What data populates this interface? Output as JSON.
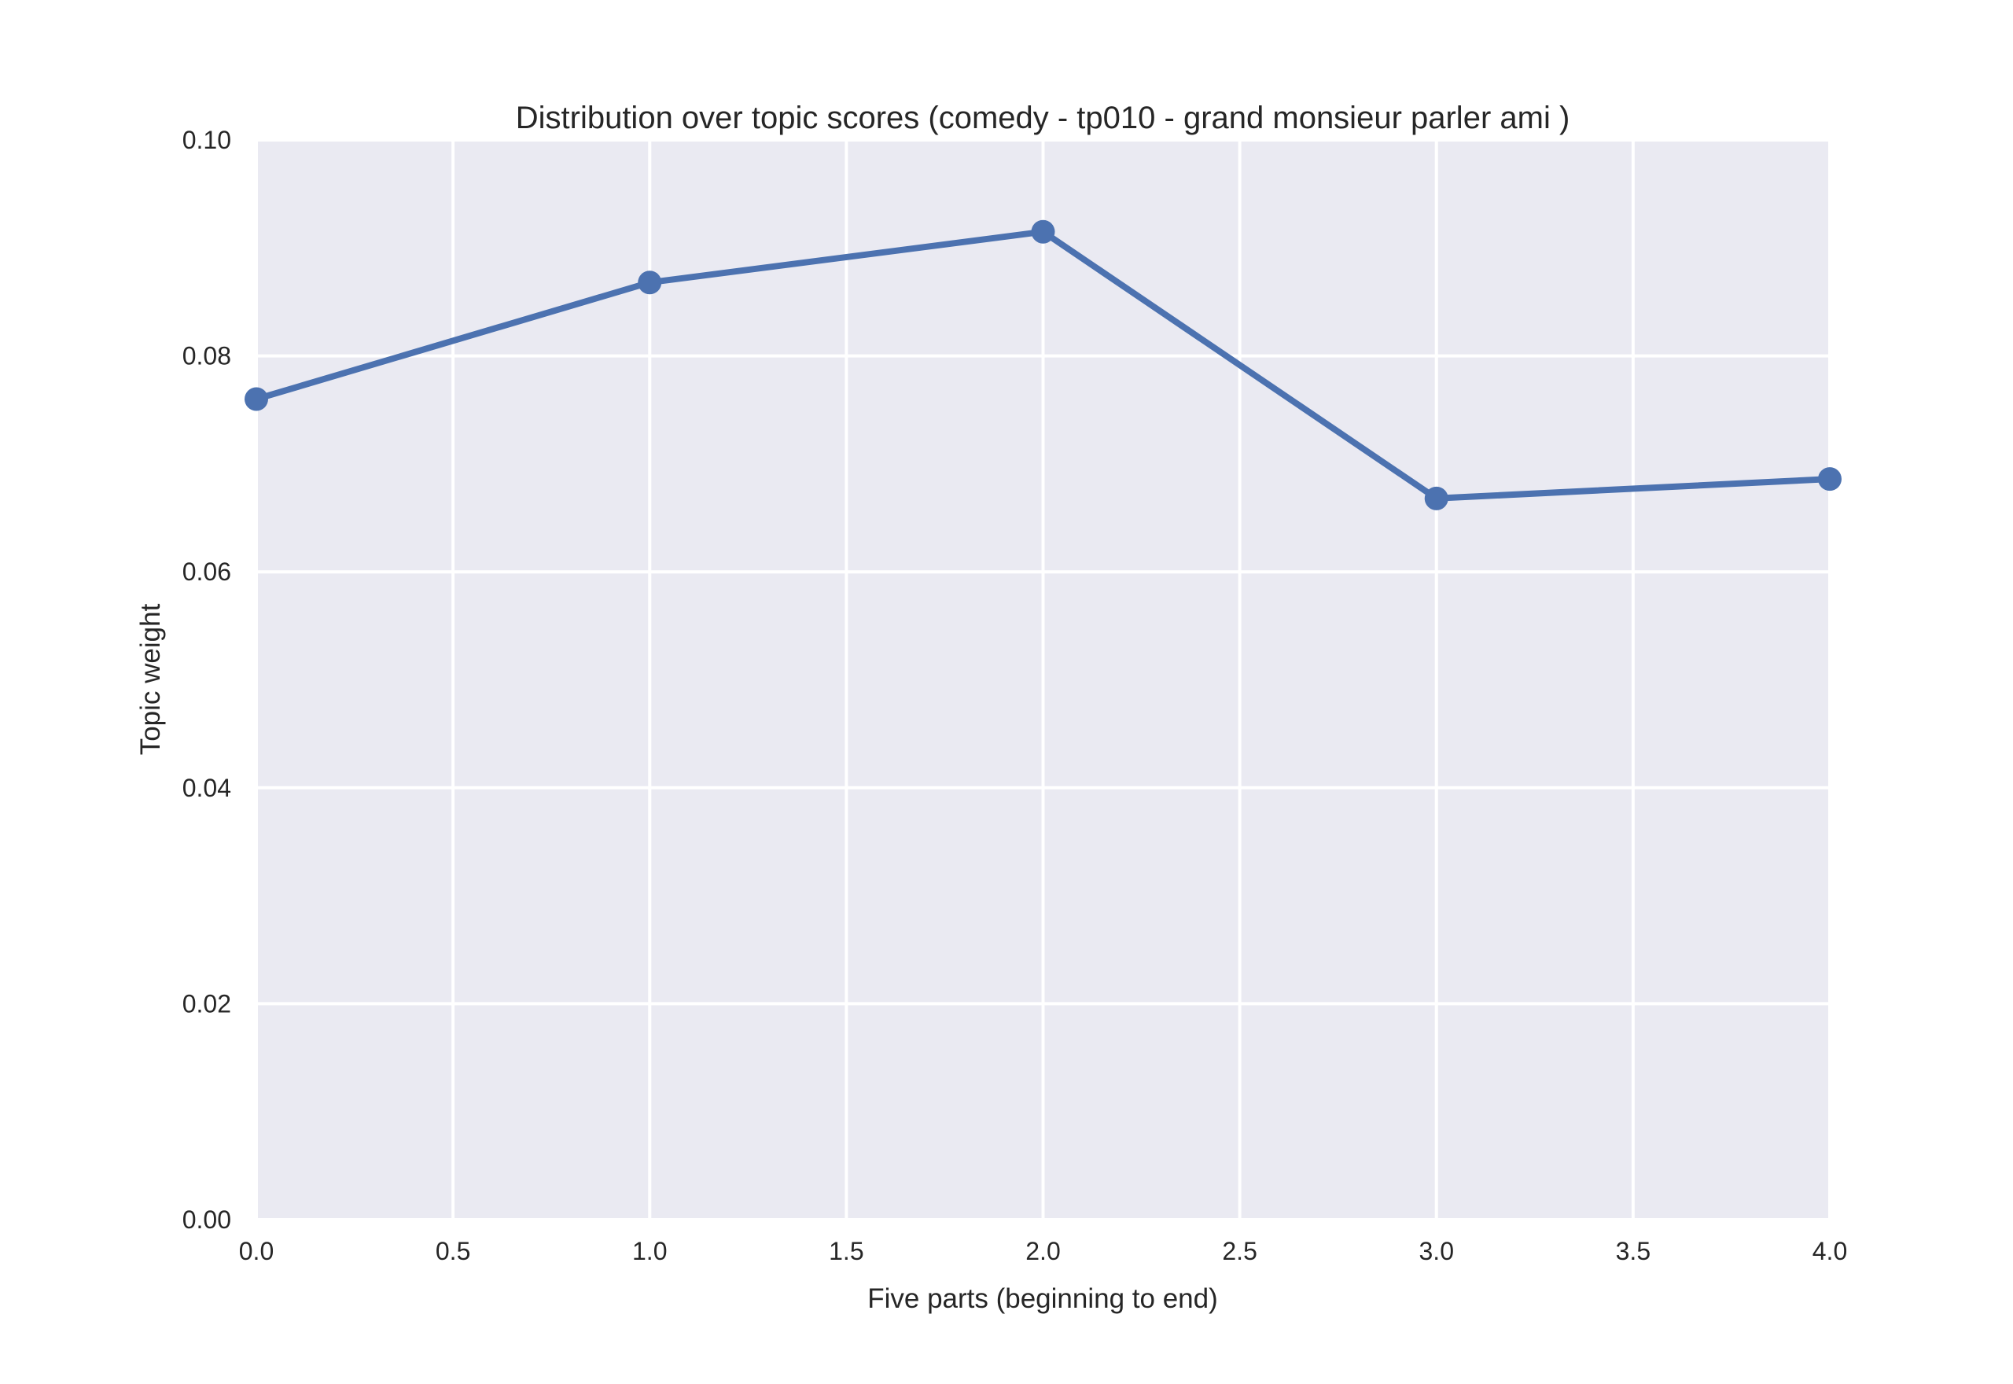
{
  "chart_data": {
    "type": "line",
    "title": "Distribution over topic scores (comedy - tp010 - grand monsieur parler ami )",
    "xlabel": "Five parts (beginning to end)",
    "ylabel": "Topic weight",
    "xlim": [
      0,
      4
    ],
    "ylim": [
      0,
      0.1
    ],
    "x_ticks": [
      0.0,
      0.5,
      1.0,
      1.5,
      2.0,
      2.5,
      3.0,
      3.5,
      4.0
    ],
    "x_tick_labels": [
      "0.0",
      "0.5",
      "1.0",
      "1.5",
      "2.0",
      "2.5",
      "3.0",
      "3.5",
      "4.0"
    ],
    "y_ticks": [
      0.0,
      0.02,
      0.04,
      0.06,
      0.08,
      0.1
    ],
    "y_tick_labels": [
      "0.00",
      "0.02",
      "0.04",
      "0.06",
      "0.08",
      "0.10"
    ],
    "grid": true,
    "legend": "none",
    "series": [
      {
        "x": [
          0,
          1,
          2,
          3,
          4
        ],
        "values": [
          0.076,
          0.0868,
          0.0915,
          0.0668,
          0.0686
        ],
        "color": "#4c72b0",
        "marker": "circle"
      }
    ],
    "colors": {
      "plot_background": "#eaeaf2",
      "grid": "#ffffff",
      "text": "#262626",
      "line": "#4c72b0"
    }
  }
}
